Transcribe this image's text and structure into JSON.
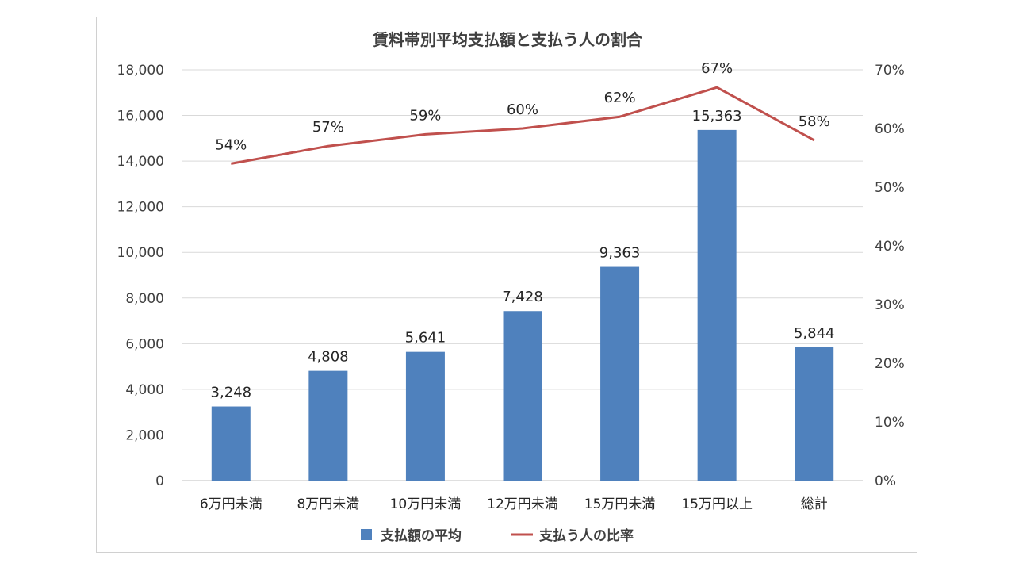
{
  "chart_data": {
    "type": "bar",
    "title": "賃料帯別平均支払額と支払う人の割合",
    "categories": [
      "6万円未満",
      "8万円未満",
      "10万円未満",
      "12万円未満",
      "15万円未満",
      "15万円以上",
      "総計"
    ],
    "series": [
      {
        "name": "支払額の平均",
        "type": "bar",
        "axis": "left",
        "values": [
          3248,
          4808,
          5641,
          7428,
          9363,
          15363,
          5844
        ],
        "labels": [
          "3,248",
          "4,808",
          "5,641",
          "7,428",
          "9,363",
          "15,363",
          "5,844"
        ]
      },
      {
        "name": "支払う人の比率",
        "type": "line",
        "axis": "right",
        "values": [
          54,
          57,
          59,
          60,
          62,
          67,
          58
        ],
        "labels": [
          "54%",
          "57%",
          "59%",
          "60%",
          "62%",
          "67%",
          "58%"
        ]
      }
    ],
    "y_left": {
      "ylim": [
        0,
        18000
      ],
      "ticks": [
        0,
        2000,
        4000,
        6000,
        8000,
        10000,
        12000,
        14000,
        16000,
        18000
      ],
      "tick_labels": [
        "0",
        "2,000",
        "4,000",
        "6,000",
        "8,000",
        "10,000",
        "12,000",
        "14,000",
        "16,000",
        "18,000"
      ]
    },
    "y_right": {
      "ylim": [
        0,
        70
      ],
      "ticks": [
        0,
        10,
        20,
        30,
        40,
        50,
        60,
        70
      ],
      "tick_labels": [
        "0%",
        "10%",
        "20%",
        "30%",
        "40%",
        "50%",
        "60%",
        "70%"
      ]
    },
    "grid": true,
    "legend_position": "bottom",
    "colors": {
      "bar": "#4f81bd",
      "line": "#c0504d",
      "grid": "#d9d9d9"
    }
  }
}
